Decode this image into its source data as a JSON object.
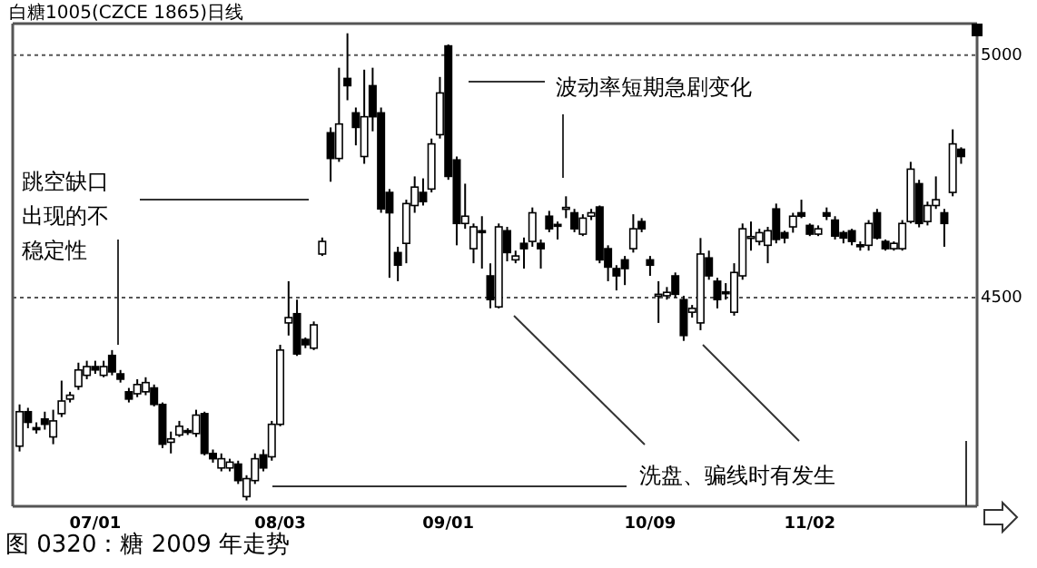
{
  "chart_data": {
    "type": "candlestick",
    "title": "白糖1005(CZCE 1865)日线",
    "annotations": [
      "跳空缺口出现的不稳定性",
      "波动率短期急剧变化",
      "洗盘、骗线时有发生",
      "图 0320：糖 2009 年走势"
    ],
    "categories": [
      null,
      null,
      null,
      null,
      null,
      null,
      null,
      null,
      null,
      "07/01",
      null,
      null,
      null,
      null,
      null,
      null,
      null,
      null,
      null,
      null,
      null,
      null,
      null,
      null,
      null,
      null,
      null,
      null,
      null,
      null,
      null,
      "08/03",
      null,
      null,
      null,
      null,
      null,
      null,
      null,
      null,
      null,
      null,
      null,
      null,
      null,
      null,
      null,
      null,
      null,
      null,
      null,
      "09/01",
      null,
      null,
      null,
      null,
      null,
      null,
      null,
      null,
      null,
      null,
      null,
      null,
      null,
      null,
      null,
      null,
      null,
      null,
      null,
      null,
      null,
      null,
      null,
      "10/09",
      null,
      null,
      null,
      null,
      null,
      null,
      null,
      null,
      null,
      null,
      null,
      null,
      null,
      null,
      null,
      null,
      null,
      null,
      "11/02",
      null,
      null,
      null,
      null,
      null,
      null,
      null,
      null,
      null,
      null,
      null,
      null,
      null,
      null,
      null,
      null,
      null,
      null
    ],
    "ohlc": [
      [
        4194,
        4280,
        4183,
        4265
      ],
      [
        4265,
        4273,
        4231,
        4243
      ],
      [
        4232,
        4243,
        4220,
        4228
      ],
      [
        4250,
        4265,
        4228,
        4239
      ],
      [
        4213,
        4269,
        4198,
        4246
      ],
      [
        4261,
        4329,
        4254,
        4287
      ],
      [
        4291,
        4306,
        4284,
        4299
      ],
      [
        4317,
        4366,
        4310,
        4351
      ],
      [
        4340,
        4370,
        4332,
        4358
      ],
      [
        4358,
        4370,
        4343,
        4351
      ],
      [
        4340,
        4370,
        4336,
        4358
      ],
      [
        4381,
        4392,
        4340,
        4347
      ],
      [
        4343,
        4351,
        4325,
        4332
      ],
      [
        4306,
        4314,
        4284,
        4291
      ],
      [
        4302,
        4332,
        4295,
        4321
      ],
      [
        4306,
        4336,
        4299,
        4325
      ],
      [
        4314,
        4321,
        4276,
        4280
      ],
      [
        4280,
        4284,
        4190,
        4198
      ],
      [
        4202,
        4224,
        4179,
        4209
      ],
      [
        4217,
        4246,
        4213,
        4235
      ],
      [
        4226,
        4231,
        4217,
        4224
      ],
      [
        4220,
        4269,
        4213,
        4258
      ],
      [
        4261,
        4265,
        4175,
        4179
      ],
      [
        4179,
        4187,
        4160,
        4168
      ],
      [
        4149,
        4179,
        4142,
        4168
      ],
      [
        4149,
        4168,
        4142,
        4161
      ],
      [
        4157,
        4164,
        4116,
        4123
      ],
      [
        4090,
        4134,
        4082,
        4127
      ],
      [
        4123,
        4179,
        4116,
        4168
      ],
      [
        4176,
        4187,
        4142,
        4149
      ],
      [
        4172,
        4246,
        4164,
        4239
      ],
      [
        4239,
        4403,
        4235,
        4392
      ],
      [
        4448,
        4534,
        4422,
        4459
      ],
      [
        4467,
        4496,
        4380,
        4384
      ],
      [
        4414,
        4418,
        4396,
        4403
      ],
      [
        4396,
        4451,
        4392,
        4444
      ],
      [
        4590,
        4624,
        4586,
        4616
      ],
      [
        4840,
        4851,
        4739,
        4787
      ],
      [
        4787,
        4974,
        4780,
        4858
      ],
      [
        4952,
        5045,
        4907,
        4937
      ],
      [
        4881,
        4892,
        4814,
        4851
      ],
      [
        4791,
        4970,
        4776,
        4873
      ],
      [
        4937,
        4974,
        4843,
        4873
      ],
      [
        4881,
        4892,
        4675,
        4683
      ],
      [
        4717,
        4724,
        4541,
        4675
      ],
      [
        4593,
        4605,
        4534,
        4567
      ],
      [
        4612,
        4702,
        4571,
        4694
      ],
      [
        4690,
        4750,
        4675,
        4728
      ],
      [
        4717,
        4746,
        4690,
        4698
      ],
      [
        4724,
        4828,
        4717,
        4817
      ],
      [
        4836,
        4955,
        4828,
        4922
      ],
      [
        5019,
        5022,
        4743,
        4750
      ],
      [
        4784,
        4791,
        4608,
        4653
      ],
      [
        4653,
        4735,
        4642,
        4668
      ],
      [
        4601,
        4653,
        4571,
        4646
      ],
      [
        4638,
        4668,
        4560,
        4635
      ],
      [
        4545,
        4571,
        4478,
        4496
      ],
      [
        4481,
        4653,
        4478,
        4646
      ],
      [
        4638,
        4646,
        4575,
        4593
      ],
      [
        4578,
        4597,
        4571,
        4586
      ],
      [
        4612,
        4624,
        4560,
        4601
      ],
      [
        4616,
        4686,
        4605,
        4675
      ],
      [
        4612,
        4620,
        4560,
        4601
      ],
      [
        4668,
        4679,
        4635,
        4642
      ],
      [
        4651,
        4657,
        4620,
        4649
      ],
      [
        4683,
        4709,
        4664,
        4686
      ],
      [
        4675,
        4683,
        4635,
        4642
      ],
      [
        4631,
        4672,
        4627,
        4664
      ],
      [
        4668,
        4683,
        4660,
        4675
      ],
      [
        4687,
        4690,
        4571,
        4578
      ],
      [
        4601,
        4608,
        4534,
        4563
      ],
      [
        4560,
        4567,
        4515,
        4545
      ],
      [
        4578,
        4586,
        4526,
        4560
      ],
      [
        4601,
        4672,
        4593,
        4642
      ],
      [
        4657,
        4664,
        4635,
        4642
      ],
      [
        4578,
        4586,
        4545,
        4567
      ],
      [
        4504,
        4534,
        4448,
        4507
      ],
      [
        4504,
        4522,
        4496,
        4511
      ],
      [
        4545,
        4552,
        4500,
        4507
      ],
      [
        4496,
        4504,
        4411,
        4422
      ],
      [
        4470,
        4485,
        4459,
        4478
      ],
      [
        4448,
        4623,
        4433,
        4590
      ],
      [
        4582,
        4597,
        4537,
        4545
      ],
      [
        4534,
        4541,
        4478,
        4496
      ],
      [
        4512,
        4530,
        4496,
        4510
      ],
      [
        4470,
        4571,
        4463,
        4552
      ],
      [
        4545,
        4653,
        4537,
        4642
      ],
      [
        4624,
        4657,
        4597,
        4626
      ],
      [
        4616,
        4642,
        4608,
        4634
      ],
      [
        4608,
        4646,
        4571,
        4638
      ],
      [
        4683,
        4694,
        4612,
        4620
      ],
      [
        4634,
        4638,
        4612,
        4623
      ],
      [
        4646,
        4675,
        4634,
        4668
      ],
      [
        4675,
        4702,
        4664,
        4668
      ],
      [
        4649,
        4653,
        4627,
        4631
      ],
      [
        4631,
        4649,
        4627,
        4642
      ],
      [
        4675,
        4686,
        4660,
        4668
      ],
      [
        4660,
        4668,
        4620,
        4627
      ],
      [
        4634,
        4638,
        4612,
        4623
      ],
      [
        4638,
        4642,
        4608,
        4616
      ],
      [
        4609,
        4616,
        4597,
        4607
      ],
      [
        4608,
        4660,
        4597,
        4653
      ],
      [
        4675,
        4683,
        4620,
        4623
      ],
      [
        4616,
        4620,
        4597,
        4601
      ],
      [
        4601,
        4616,
        4597,
        4612
      ],
      [
        4601,
        4660,
        4597,
        4653
      ],
      [
        4657,
        4780,
        4653,
        4765
      ],
      [
        4735,
        4743,
        4645,
        4653
      ],
      [
        4657,
        4698,
        4649,
        4690
      ],
      [
        4690,
        4750,
        4683,
        4702
      ],
      [
        4675,
        4683,
        4605,
        4653
      ],
      [
        4717,
        4847,
        4709,
        4817
      ],
      [
        4806,
        4810,
        4776,
        4791
      ]
    ],
    "ylim": [
      4070,
      5065
    ],
    "yticks": [
      4500,
      5000
    ],
    "grid": "y"
  }
}
